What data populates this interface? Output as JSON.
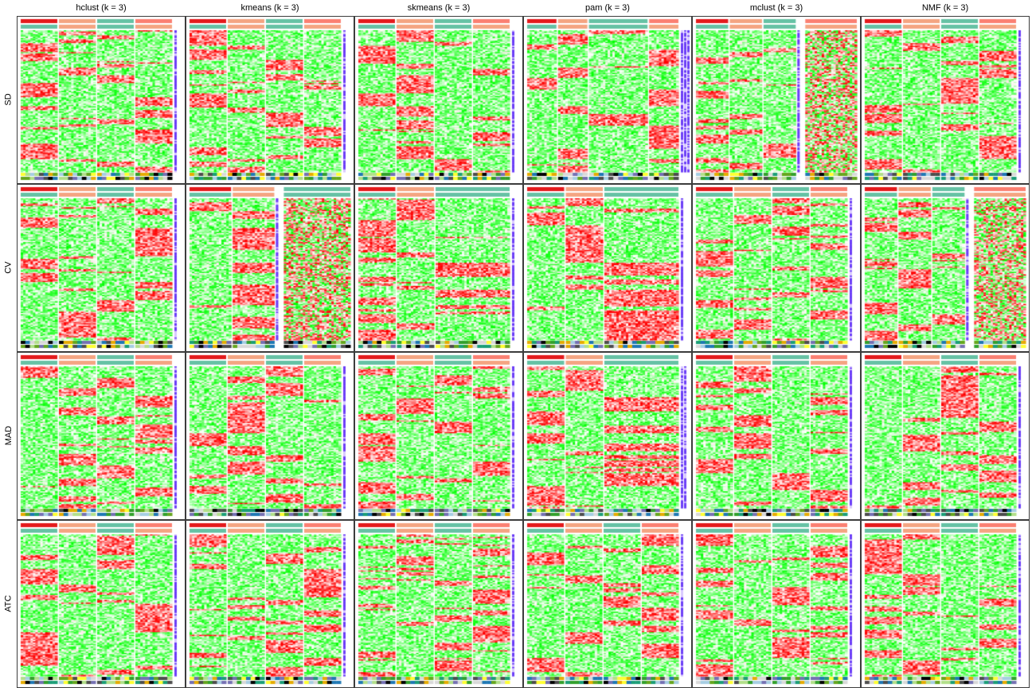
{
  "chart_data": {
    "type": "heatmap",
    "title": "",
    "column_titles": [
      "hclust (k = 3)",
      "kmeans (k = 3)",
      "skmeans (k = 3)",
      "pam (k = 3)",
      "mclust (k = 3)",
      "NMF (k = 3)"
    ],
    "row_titles": [
      "SD",
      "CV",
      "MAD",
      "ATC"
    ],
    "color_scale": {
      "low": "#00ff00",
      "mid": "#ffffff",
      "high": "#ff0000"
    },
    "class_colors": [
      "#e41a1c",
      "#f4a582",
      "#66c2a5",
      "#fb8072"
    ],
    "grid": "4 x 6 panels",
    "panels": [
      {
        "row": "SD",
        "method": "hclust",
        "slices": [
          1,
          1,
          1,
          1
        ],
        "side_bars": 1
      },
      {
        "row": "SD",
        "method": "kmeans",
        "slices": [
          1,
          1,
          1,
          1
        ],
        "side_bars": 1
      },
      {
        "row": "SD",
        "method": "skmeans",
        "slices": [
          1,
          1,
          1,
          1
        ],
        "side_bars": 1
      },
      {
        "row": "SD",
        "method": "pam",
        "slices": [
          1,
          1,
          2,
          1
        ],
        "side_bars": 3
      },
      {
        "row": "SD",
        "method": "mclust",
        "slices": [
          1,
          1,
          1
        ],
        "side_bars": 1,
        "noise_slice": true
      },
      {
        "row": "SD",
        "method": "NMF",
        "slices": [
          1,
          1,
          1,
          1
        ],
        "side_bars": 1
      },
      {
        "row": "CV",
        "method": "hclust",
        "slices": [
          1,
          1,
          1,
          1
        ],
        "side_bars": 1
      },
      {
        "row": "CV",
        "method": "kmeans",
        "slices": [
          1,
          1
        ],
        "side_bars": 1,
        "noise_slice": true
      },
      {
        "row": "CV",
        "method": "skmeans",
        "slices": [
          1,
          1,
          2
        ],
        "side_bars": 1
      },
      {
        "row": "CV",
        "method": "pam",
        "slices": [
          1,
          1,
          2
        ],
        "side_bars": 1
      },
      {
        "row": "CV",
        "method": "mclust",
        "slices": [
          1,
          1,
          1,
          1
        ],
        "side_bars": 1
      },
      {
        "row": "CV",
        "method": "NMF",
        "slices": [
          1,
          1,
          1
        ],
        "side_bars": 1,
        "noise_slice": true
      },
      {
        "row": "MAD",
        "method": "hclust",
        "slices": [
          1,
          1,
          1,
          1
        ],
        "side_bars": 1
      },
      {
        "row": "MAD",
        "method": "kmeans",
        "slices": [
          1,
          1,
          1,
          1
        ],
        "side_bars": 1
      },
      {
        "row": "MAD",
        "method": "skmeans",
        "slices": [
          1,
          1,
          1,
          1
        ],
        "side_bars": 1
      },
      {
        "row": "MAD",
        "method": "pam",
        "slices": [
          1,
          1,
          2
        ],
        "side_bars": 2
      },
      {
        "row": "MAD",
        "method": "mclust",
        "slices": [
          1,
          1,
          1,
          1
        ],
        "side_bars": 1
      },
      {
        "row": "MAD",
        "method": "NMF",
        "slices": [
          1,
          1,
          1,
          1
        ],
        "side_bars": 1
      },
      {
        "row": "ATC",
        "method": "hclust",
        "slices": [
          1,
          1,
          1,
          1
        ],
        "side_bars": 1
      },
      {
        "row": "ATC",
        "method": "kmeans",
        "slices": [
          1,
          1,
          1,
          1
        ],
        "side_bars": 1
      },
      {
        "row": "ATC",
        "method": "skmeans",
        "slices": [
          1,
          1,
          1,
          1
        ],
        "side_bars": 1
      },
      {
        "row": "ATC",
        "method": "pam",
        "slices": [
          1,
          1,
          1,
          1
        ],
        "side_bars": 1
      },
      {
        "row": "ATC",
        "method": "mclust",
        "slices": [
          1,
          1,
          1,
          1
        ],
        "side_bars": 1
      },
      {
        "row": "ATC",
        "method": "NMF",
        "slices": [
          1,
          1,
          1,
          1
        ],
        "side_bars": 1
      }
    ]
  }
}
